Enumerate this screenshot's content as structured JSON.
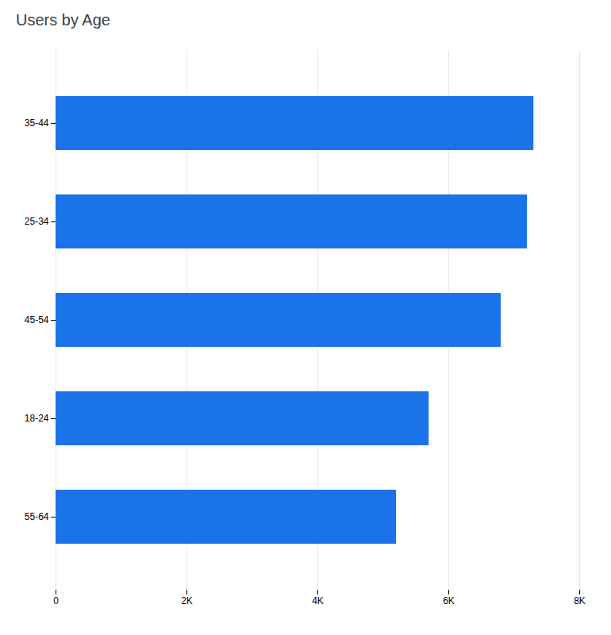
{
  "chart_data": {
    "type": "bar",
    "orientation": "horizontal",
    "title": "Users by Age",
    "categories": [
      "55-64",
      "18-24",
      "45-54",
      "25-34",
      "35-44"
    ],
    "values": [
      5200,
      5700,
      6800,
      7200,
      7300
    ],
    "color": "#1a73e8",
    "xlim": [
      0,
      8000
    ],
    "xticks": [
      0,
      {
        "value": 2000,
        "label": "2K"
      },
      {
        "value": 4000,
        "label": "4K"
      },
      {
        "value": 6000,
        "label": "6K"
      },
      {
        "value": 8000,
        "label": "8K"
      }
    ],
    "grid": true
  }
}
